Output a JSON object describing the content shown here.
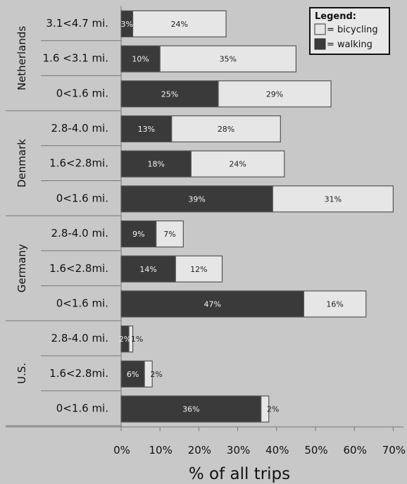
{
  "chart_data": {
    "type": "bar",
    "orientation": "horizontal",
    "stacked": true,
    "xlabel": "% of all trips",
    "xlim": [
      0,
      70
    ],
    "xticks": [
      "0%",
      "10%",
      "20%",
      "30%",
      "40%",
      "50%",
      "60%",
      "70%"
    ],
    "grid": false,
    "legend": {
      "title": "Legend:",
      "placement": "top-right",
      "entries": [
        "= bicycling",
        "= walking"
      ]
    },
    "colors": {
      "walking": "#3a3a3a",
      "bicycling": "#e6e6e6",
      "background": "#c8c8c8"
    },
    "groups": [
      {
        "name": "Netherlands",
        "rows": [
          {
            "label": "3.1<4.7 mi.",
            "walking": 3,
            "bicycling": 24
          },
          {
            "label": "1.6 <3.1 mi.",
            "walking": 10,
            "bicycling": 35
          },
          {
            "label": "0<1.6 mi.",
            "walking": 25,
            "bicycling": 29
          }
        ]
      },
      {
        "name": "Denmark",
        "rows": [
          {
            "label": "2.8-4.0 mi.",
            "walking": 13,
            "bicycling": 28
          },
          {
            "label": "1.6<2.8mi.",
            "walking": 18,
            "bicycling": 24
          },
          {
            "label": "0<1.6 mi.",
            "walking": 39,
            "bicycling": 31
          }
        ]
      },
      {
        "name": "Germany",
        "rows": [
          {
            "label": "2.8-4.0 mi.",
            "walking": 9,
            "bicycling": 7
          },
          {
            "label": "1.6<2.8mi.",
            "walking": 14,
            "bicycling": 12
          },
          {
            "label": "0<1.6 mi.",
            "walking": 47,
            "bicycling": 16
          }
        ]
      },
      {
        "name": "U.S.",
        "rows": [
          {
            "label": "2.8-4.0 mi.",
            "walking": 2,
            "bicycling": 1
          },
          {
            "label": "1.6<2.8mi.",
            "walking": 6,
            "bicycling": 2
          },
          {
            "label": "0<1.6 mi.",
            "walking": 36,
            "bicycling": 2
          }
        ]
      }
    ]
  }
}
